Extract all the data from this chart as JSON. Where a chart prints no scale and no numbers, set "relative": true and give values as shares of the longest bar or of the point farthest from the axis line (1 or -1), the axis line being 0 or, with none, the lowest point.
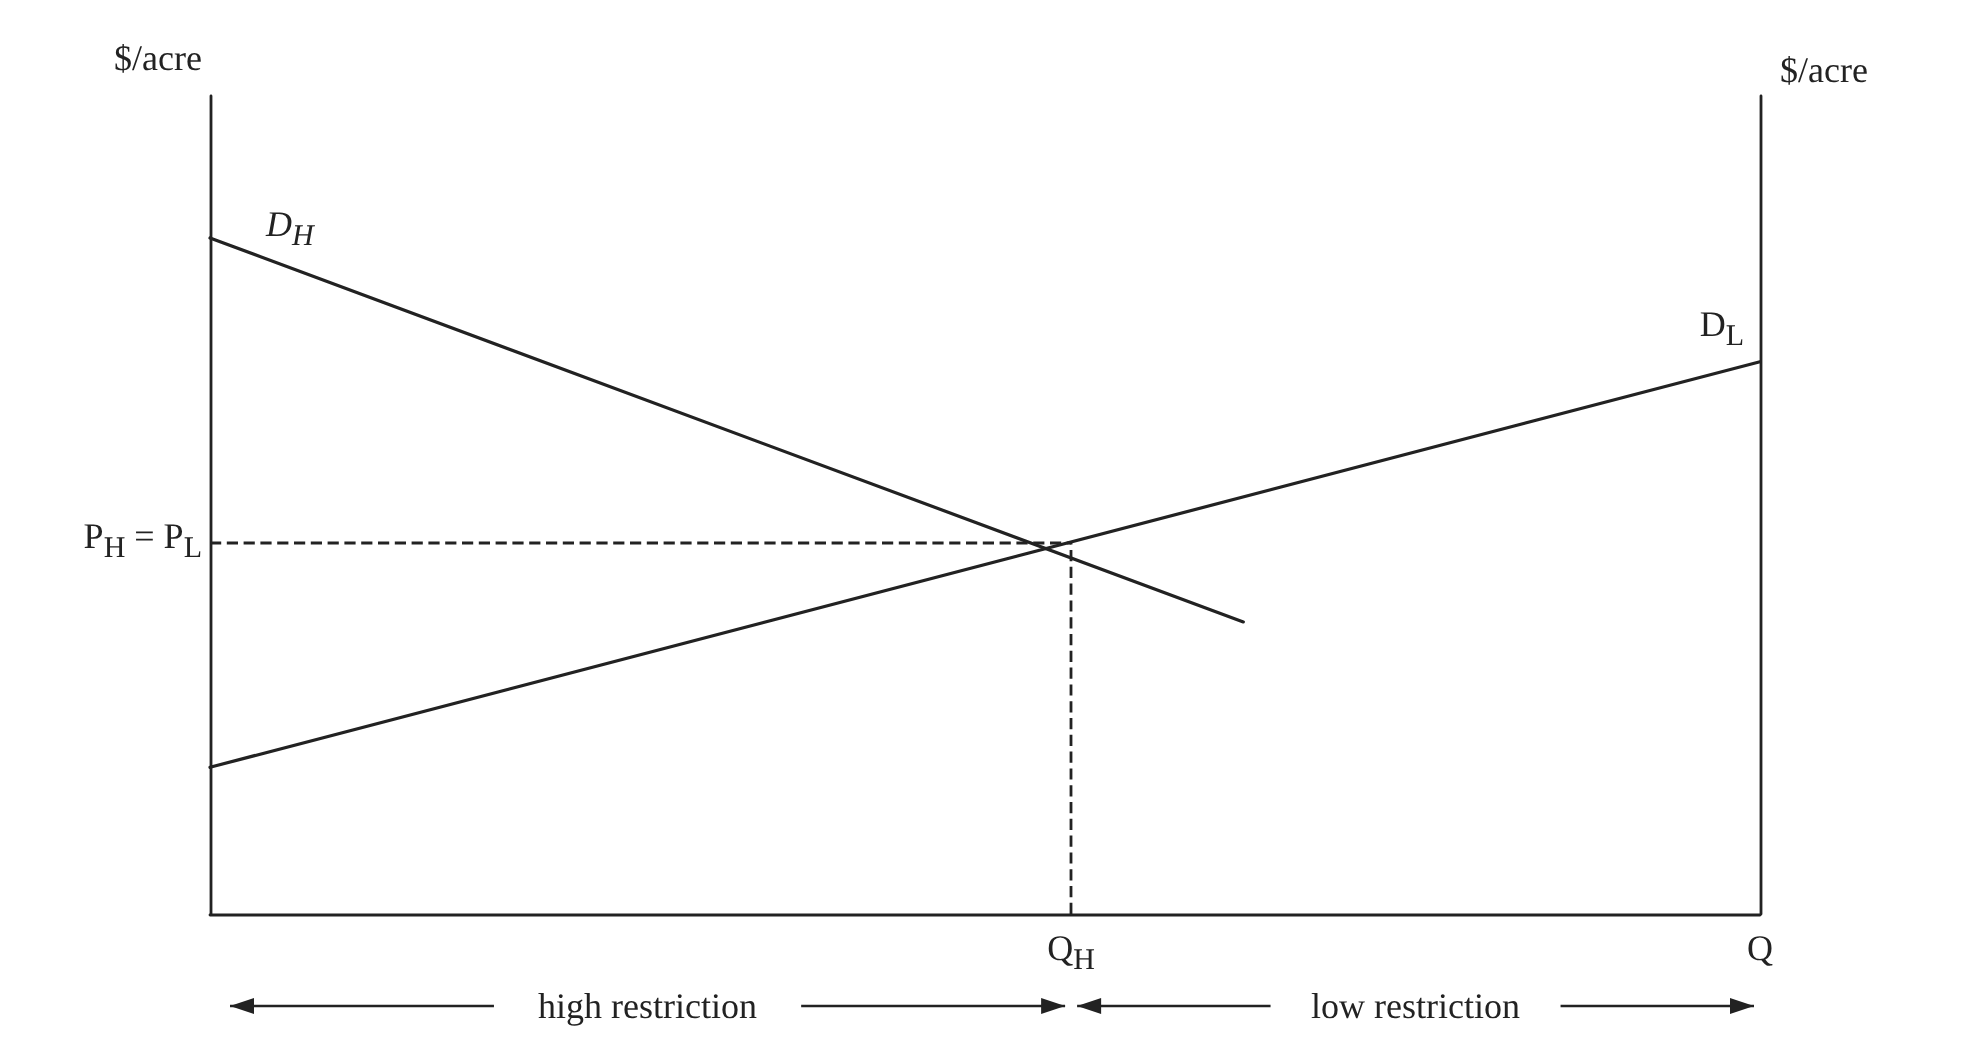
{
  "chart_data": {
    "type": "line",
    "relative": true,
    "ylabel": "$/acre",
    "y2label": "$/acre",
    "categories": [
      null,
      null,
      null,
      null,
      null,
      "Q$_{H}$",
      null,
      null,
      null,
      "Q"
    ],
    "series": [
      {
        "name": "D$_{H}$",
        "color": "#222222",
        "values": [
          1,
          null,
          null,
          null,
          null,
          null,
          0.432,
          null,
          null,
          null
        ]
      },
      {
        "name": "D$_{L}$",
        "color": "#222222",
        "values": [
          0.217,
          null,
          null,
          null,
          null,
          null,
          null,
          null,
          null,
          0.817
        ]
      }
    ],
    "ref_lines": [
      {
        "axis": "y",
        "value": 0.549,
        "label": "P$_{H}$ = P$_{L}$",
        "line_style": "dashed"
      },
      {
        "axis": "x",
        "value": "Q$_{H}$",
        "line_style": "dashed"
      }
    ],
    "annotations": [
      "high restriction",
      "low restriction"
    ],
    "marker": "none",
    "line_style": "solid"
  }
}
